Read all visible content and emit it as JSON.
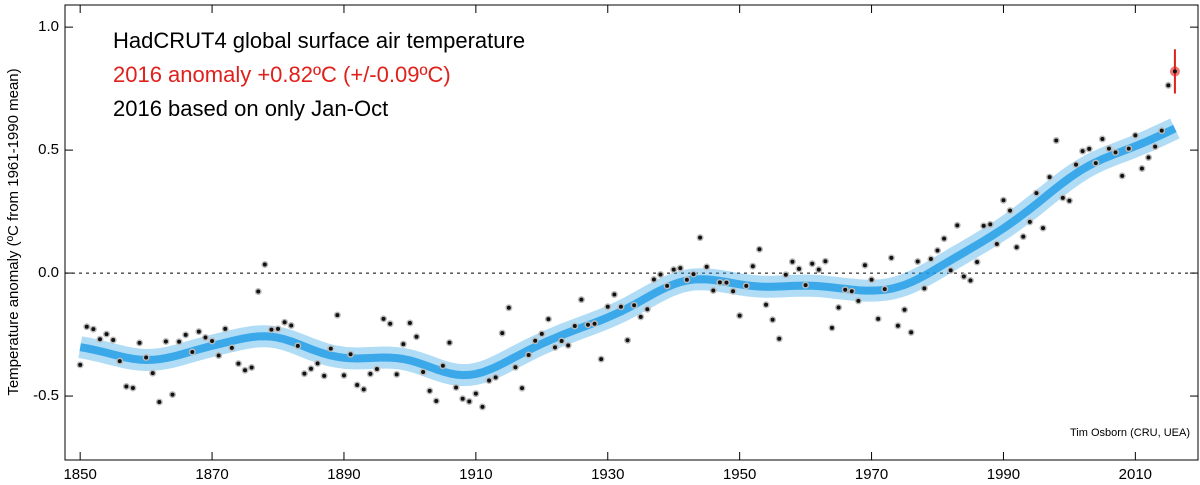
{
  "chart_data": {
    "type": "scatter",
    "title": "HadCRUT4 global surface air temperature",
    "subtitle": "2016 anomaly +0.82ºC (+/-0.09ºC)",
    "note": "2016 based on only Jan-Oct",
    "credit": "Tim Osborn (CRU, UEA)",
    "ylabel": "Temperature anomaly (ºC from 1961-1990 mean)",
    "x": [
      1850,
      1851,
      1852,
      1853,
      1854,
      1855,
      1856,
      1857,
      1858,
      1859,
      1860,
      1861,
      1862,
      1863,
      1864,
      1865,
      1866,
      1867,
      1868,
      1869,
      1870,
      1871,
      1872,
      1873,
      1874,
      1875,
      1876,
      1877,
      1878,
      1879,
      1880,
      1881,
      1882,
      1883,
      1884,
      1885,
      1886,
      1887,
      1888,
      1889,
      1890,
      1891,
      1892,
      1893,
      1894,
      1895,
      1896,
      1897,
      1898,
      1899,
      1900,
      1901,
      1902,
      1903,
      1904,
      1905,
      1906,
      1907,
      1908,
      1909,
      1910,
      1911,
      1912,
      1913,
      1914,
      1915,
      1916,
      1917,
      1918,
      1919,
      1920,
      1921,
      1922,
      1923,
      1924,
      1925,
      1926,
      1927,
      1928,
      1929,
      1930,
      1931,
      1932,
      1933,
      1934,
      1935,
      1936,
      1937,
      1938,
      1939,
      1940,
      1941,
      1942,
      1943,
      1944,
      1945,
      1946,
      1947,
      1948,
      1949,
      1950,
      1951,
      1952,
      1953,
      1954,
      1955,
      1956,
      1957,
      1958,
      1959,
      1960,
      1961,
      1962,
      1963,
      1964,
      1965,
      1966,
      1967,
      1968,
      1969,
      1970,
      1971,
      1972,
      1973,
      1974,
      1975,
      1976,
      1977,
      1978,
      1979,
      1980,
      1981,
      1982,
      1983,
      1984,
      1985,
      1986,
      1987,
      1988,
      1989,
      1990,
      1991,
      1992,
      1993,
      1994,
      1995,
      1996,
      1997,
      1998,
      1999,
      2000,
      2001,
      2002,
      2003,
      2004,
      2005,
      2006,
      2007,
      2008,
      2009,
      2010,
      2011,
      2012,
      2013,
      2014,
      2015,
      2016
    ],
    "series": [
      {
        "color": "#111111",
        "values": [
          -0.373,
          -0.218,
          -0.228,
          -0.269,
          -0.248,
          -0.272,
          -0.358,
          -0.461,
          -0.467,
          -0.284,
          -0.343,
          -0.407,
          -0.524,
          -0.278,
          -0.494,
          -0.279,
          -0.251,
          -0.321,
          -0.238,
          -0.262,
          -0.276,
          -0.335,
          -0.227,
          -0.304,
          -0.368,
          -0.395,
          -0.384,
          -0.075,
          0.035,
          -0.23,
          -0.227,
          -0.2,
          -0.213,
          -0.296,
          -0.409,
          -0.389,
          -0.367,
          -0.418,
          -0.307,
          -0.171,
          -0.416,
          -0.33,
          -0.455,
          -0.473,
          -0.41,
          -0.39,
          -0.186,
          -0.206,
          -0.412,
          -0.289,
          -0.203,
          -0.259,
          -0.402,
          -0.479,
          -0.52,
          -0.377,
          -0.283,
          -0.465,
          -0.511,
          -0.522,
          -0.49,
          -0.544,
          -0.437,
          -0.424,
          -0.244,
          -0.141,
          -0.383,
          -0.468,
          -0.333,
          -0.275,
          -0.247,
          -0.187,
          -0.302,
          -0.276,
          -0.294,
          -0.215,
          -0.108,
          -0.21,
          -0.206,
          -0.35,
          -0.137,
          -0.087,
          -0.137,
          -0.273,
          -0.131,
          -0.178,
          -0.147,
          -0.026,
          -0.006,
          -0.052,
          0.014,
          0.02,
          -0.027,
          -0.004,
          0.144,
          0.025,
          -0.071,
          -0.038,
          -0.039,
          -0.074,
          -0.173,
          -0.052,
          0.028,
          0.097,
          -0.129,
          -0.19,
          -0.267,
          -0.007,
          0.046,
          0.017,
          -0.049,
          0.038,
          0.014,
          0.048,
          -0.223,
          -0.14,
          -0.068,
          -0.074,
          -0.113,
          0.032,
          -0.027,
          -0.186,
          -0.065,
          0.062,
          -0.214,
          -0.149,
          -0.241,
          0.047,
          -0.062,
          0.057,
          0.092,
          0.14,
          0.011,
          0.194,
          -0.014,
          -0.03,
          0.045,
          0.192,
          0.198,
          0.118,
          0.296,
          0.254,
          0.105,
          0.148,
          0.208,
          0.325,
          0.183,
          0.39,
          0.539,
          0.306,
          0.294,
          0.441,
          0.496,
          0.505,
          0.447,
          0.545,
          0.506,
          0.491,
          0.395,
          0.506,
          0.56,
          0.425,
          0.47,
          0.514,
          0.579,
          0.763,
          0.82
        ]
      }
    ],
    "last_point_color": "#e0201b",
    "last_point_error": 0.09,
    "smooth_color": "#1e9be6",
    "reference_line": 0,
    "xlim": [
      1847.7,
      2019.5
    ],
    "xticks": [
      1850,
      1870,
      1890,
      1910,
      1930,
      1950,
      1970,
      1990,
      2010
    ],
    "ylim": [
      -0.76,
      1.09
    ],
    "yticks": [
      -0.5,
      {
        "value": 0,
        "label": "0.0"
      },
      0.5,
      {
        "value": 1,
        "label": "1.0"
      }
    ]
  }
}
